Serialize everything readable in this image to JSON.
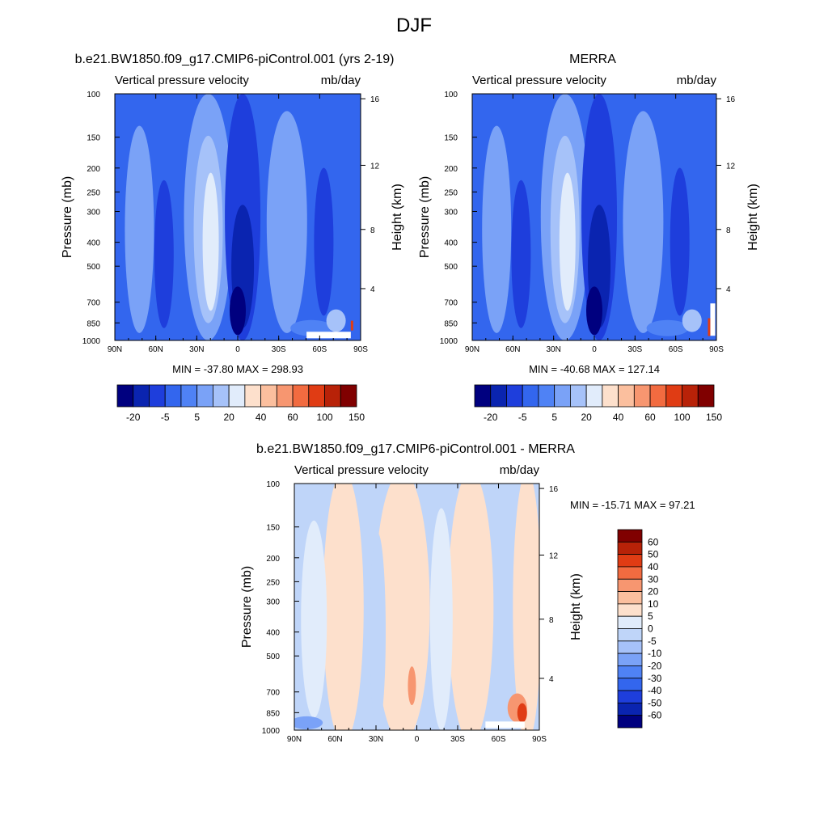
{
  "page": {
    "title": "DJF"
  },
  "chart_data": [
    {
      "type": "heatmap",
      "title": "b.e21.BW1850.f09_g17.CMIP6-piControl.001 (yrs 2-19)",
      "left_label": "Vertical pressure velocity",
      "right_label": "mb/day",
      "ylabel": "Pressure (mb)",
      "ylabel2": "Height (km)",
      "x_ticks": [
        "90N",
        "60N",
        "30N",
        "0",
        "30S",
        "60S",
        "90S"
      ],
      "y_ticks": [
        "100",
        "150",
        "200",
        "250",
        "300",
        "400",
        "500",
        "700",
        "850",
        "1000"
      ],
      "y2_ticks": [
        "16",
        "12",
        "8",
        "4"
      ],
      "stats": "MIN = -37.80  MAX = 298.93",
      "colorbar": {
        "orientation": "horizontal",
        "labels": [
          "-20",
          "-5",
          "5",
          "20",
          "40",
          "60",
          "100",
          "150"
        ]
      },
      "grid": false
    },
    {
      "type": "heatmap",
      "title": "MERRA",
      "left_label": "Vertical pressure velocity",
      "right_label": "mb/day",
      "ylabel": "Pressure (mb)",
      "ylabel2": "Height (km)",
      "x_ticks": [
        "90N",
        "60N",
        "30N",
        "0",
        "30S",
        "60S",
        "90S"
      ],
      "y_ticks": [
        "100",
        "150",
        "200",
        "250",
        "300",
        "400",
        "500",
        "700",
        "850",
        "1000"
      ],
      "y2_ticks": [
        "16",
        "12",
        "8",
        "4"
      ],
      "stats": "MIN = -40.68  MAX = 127.14",
      "colorbar": {
        "orientation": "horizontal",
        "labels": [
          "-20",
          "-5",
          "5",
          "20",
          "40",
          "60",
          "100",
          "150"
        ]
      },
      "grid": false
    },
    {
      "type": "heatmap",
      "title": "b.e21.BW1850.f09_g17.CMIP6-piControl.001 - MERRA",
      "left_label": "Vertical pressure velocity",
      "right_label": "mb/day",
      "ylabel": "Pressure (mb)",
      "ylabel2": "Height (km)",
      "x_ticks": [
        "90N",
        "60N",
        "30N",
        "0",
        "30S",
        "60S",
        "90S"
      ],
      "y_ticks": [
        "100",
        "150",
        "200",
        "250",
        "300",
        "400",
        "500",
        "700",
        "850",
        "1000"
      ],
      "y2_ticks": [
        "16",
        "12",
        "8",
        "4"
      ],
      "stats": "MIN = -15.71  MAX =  97.21",
      "colorbar": {
        "orientation": "vertical",
        "labels": [
          "60",
          "50",
          "40",
          "30",
          "20",
          "10",
          "5",
          "0",
          "-5",
          "-10",
          "-20",
          "-30",
          "-40",
          "-50",
          "-60"
        ]
      },
      "grid": false
    }
  ],
  "colors": {
    "palette_main": [
      "#00007f",
      "#0a24b0",
      "#1e3edc",
      "#3366ee",
      "#4f82f5",
      "#7aa2f7",
      "#a6c2f9",
      "#e1ecfb",
      "#fde0cc",
      "#fbbf9e",
      "#f79670",
      "#f26b40",
      "#e03c14",
      "#b82208",
      "#800000"
    ],
    "palette_diff": [
      "#800000",
      "#b82208",
      "#e03c14",
      "#f26b40",
      "#f79670",
      "#fbbf9e",
      "#fde0cc",
      "#e1ecfb",
      "#bfd5f9",
      "#a6c2f9",
      "#7aa2f7",
      "#4f82f5",
      "#3366ee",
      "#1e3edc",
      "#0a24b0",
      "#00007f"
    ]
  }
}
